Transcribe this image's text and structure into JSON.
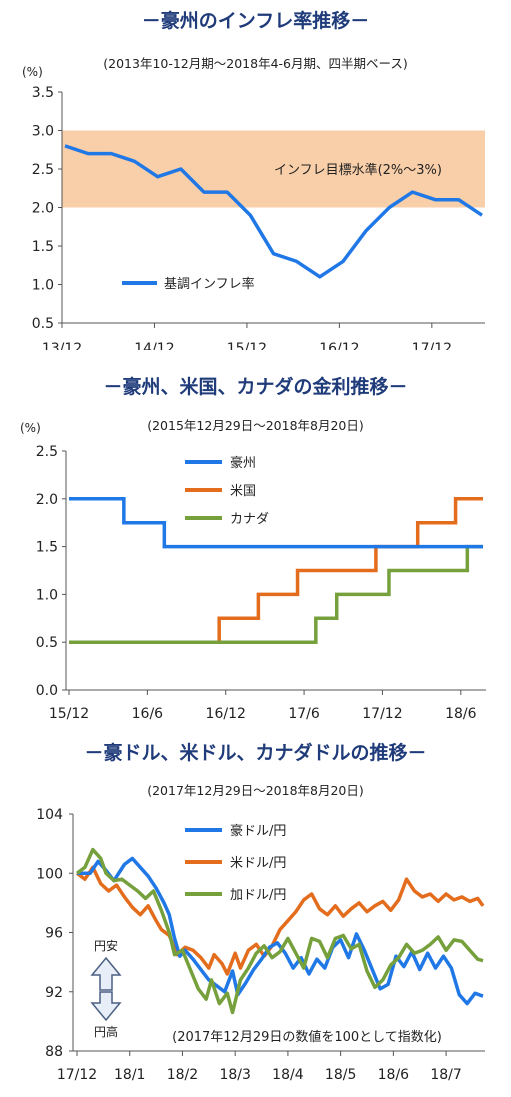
{
  "chart_data": [
    {
      "type": "line",
      "title": "－豪州のインフレ率推移－",
      "subtitle": "(2013年10-12月期～2018年4-6月期、四半期ベース)",
      "unit_label": "(%)",
      "ylim": [
        0.5,
        3.5
      ],
      "yticks": [
        "0.5",
        "1.0",
        "1.5",
        "2.0",
        "2.5",
        "3.0",
        "3.5"
      ],
      "xtick_labels": [
        "13/12",
        "14/12",
        "15/12",
        "16/12",
        "17/12"
      ],
      "band": {
        "label": "インフレ目標水準(2%～3%)",
        "from": 2.0,
        "to": 3.0,
        "color": "#f9cfa9"
      },
      "series": [
        {
          "name": "基調インフレ率",
          "color": "#1f78e6",
          "values": [
            2.8,
            2.7,
            2.7,
            2.6,
            2.4,
            2.5,
            2.2,
            2.2,
            1.9,
            1.4,
            1.3,
            1.1,
            1.3,
            1.7,
            2.0,
            2.2,
            2.1,
            2.1,
            1.9
          ]
        }
      ]
    },
    {
      "type": "line",
      "title": "－豪州、米国、カナダの金利推移－",
      "subtitle": "(2015年12月29日～2018年8月20日)",
      "unit_label": "(%)",
      "ylim": [
        0.0,
        2.5
      ],
      "yticks": [
        "0.0",
        "0.5",
        "1.0",
        "1.5",
        "2.0",
        "2.5"
      ],
      "xtick_labels": [
        "15/12",
        "16/6",
        "16/12",
        "17/6",
        "17/12",
        "18/6"
      ],
      "step": true,
      "series": [
        {
          "name": "豪州",
          "color": "#1f78e6",
          "points": [
            [
              0,
              2.0
            ],
            [
              4.2,
              2.0
            ],
            [
              4.2,
              1.75
            ],
            [
              7.3,
              1.75
            ],
            [
              7.3,
              1.5
            ],
            [
              31.7,
              1.5
            ]
          ]
        },
        {
          "name": "米国",
          "color": "#e36c1d",
          "points": [
            [
              0,
              0.5
            ],
            [
              11.5,
              0.5
            ],
            [
              11.5,
              0.75
            ],
            [
              14.5,
              0.75
            ],
            [
              14.5,
              1.0
            ],
            [
              17.5,
              1.0
            ],
            [
              17.5,
              1.25
            ],
            [
              23.5,
              1.25
            ],
            [
              23.5,
              1.5
            ],
            [
              26.7,
              1.5
            ],
            [
              26.7,
              1.75
            ],
            [
              29.6,
              1.75
            ],
            [
              29.6,
              2.0
            ],
            [
              31.7,
              2.0
            ]
          ]
        },
        {
          "name": "カナダ",
          "color": "#76a03c",
          "points": [
            [
              0,
              0.5
            ],
            [
              18.9,
              0.5
            ],
            [
              18.9,
              0.75
            ],
            [
              20.5,
              0.75
            ],
            [
              20.5,
              1.0
            ],
            [
              24.5,
              1.0
            ],
            [
              24.5,
              1.25
            ],
            [
              30.5,
              1.25
            ],
            [
              30.5,
              1.5
            ],
            [
              31.7,
              1.5
            ]
          ]
        }
      ]
    },
    {
      "type": "line",
      "title": "－豪ドル、米ドル、カナダドルの推移－",
      "subtitle": "(2017年12月29日～2018年8月20日)",
      "ylim": [
        88,
        104
      ],
      "yticks": [
        "88",
        "92",
        "96",
        "100",
        "104"
      ],
      "xtick_labels": [
        "17/12",
        "18/1",
        "18/2",
        "18/3",
        "18/4",
        "18/5",
        "18/6",
        "18/7"
      ],
      "annotation": "(2017年12月29日の数値を100として指数化)",
      "arrow_labels": {
        "up": "円安",
        "down": "円高"
      },
      "series": [
        {
          "name": "豪ドル/円",
          "color": "#1f78e6",
          "points": [
            [
              0,
              100
            ],
            [
              0.25,
              100
            ],
            [
              0.4,
              100.8
            ],
            [
              0.55,
              100.2
            ],
            [
              0.7,
              99.5
            ],
            [
              0.9,
              100.6
            ],
            [
              1.05,
              101
            ],
            [
              1.2,
              100.4
            ],
            [
              1.35,
              99.8
            ],
            [
              1.5,
              99
            ],
            [
              1.65,
              98
            ],
            [
              1.75,
              97.2
            ],
            [
              1.85,
              95.6
            ],
            [
              1.95,
              94.4
            ],
            [
              2.05,
              94.8
            ],
            [
              2.2,
              94.2
            ],
            [
              2.35,
              93.5
            ],
            [
              2.5,
              92.8
            ],
            [
              2.65,
              92.4
            ],
            [
              2.8,
              92
            ],
            [
              2.95,
              93.4
            ],
            [
              3.05,
              91.8
            ],
            [
              3.2,
              92.6
            ],
            [
              3.35,
              93.5
            ],
            [
              3.5,
              94.2
            ],
            [
              3.65,
              95
            ],
            [
              3.8,
              95.3
            ],
            [
              3.95,
              94.6
            ],
            [
              4.1,
              93.6
            ],
            [
              4.25,
              94.3
            ],
            [
              4.4,
              93.2
            ],
            [
              4.55,
              94.2
            ],
            [
              4.7,
              93.6
            ],
            [
              4.85,
              95
            ],
            [
              5.0,
              95.5
            ],
            [
              5.15,
              94.3
            ],
            [
              5.3,
              95.9
            ],
            [
              5.45,
              94.8
            ],
            [
              5.6,
              93.5
            ],
            [
              5.75,
              92.2
            ],
            [
              5.9,
              92.5
            ],
            [
              6.05,
              94.4
            ],
            [
              6.2,
              93.7
            ],
            [
              6.35,
              94.7
            ],
            [
              6.5,
              93.5
            ],
            [
              6.65,
              94.6
            ],
            [
              6.8,
              93.6
            ],
            [
              6.95,
              94.4
            ],
            [
              7.1,
              93.6
            ],
            [
              7.25,
              91.8
            ],
            [
              7.4,
              91.2
            ],
            [
              7.55,
              91.9
            ],
            [
              7.7,
              91.7
            ]
          ]
        },
        {
          "name": "米ドル/円",
          "color": "#e36c1d",
          "points": [
            [
              0,
              100
            ],
            [
              0.15,
              99.6
            ],
            [
              0.3,
              100.4
            ],
            [
              0.45,
              99.3
            ],
            [
              0.6,
              98.8
            ],
            [
              0.75,
              99.2
            ],
            [
              0.9,
              98.4
            ],
            [
              1.05,
              97.7
            ],
            [
              1.2,
              97.2
            ],
            [
              1.35,
              97.8
            ],
            [
              1.5,
              96.8
            ],
            [
              1.6,
              96.2
            ],
            [
              1.75,
              95.8
            ],
            [
              1.9,
              94.5
            ],
            [
              2.05,
              95
            ],
            [
              2.2,
              94.8
            ],
            [
              2.35,
              94.3
            ],
            [
              2.5,
              93.6
            ],
            [
              2.6,
              94.5
            ],
            [
              2.75,
              93.9
            ],
            [
              2.85,
              93.2
            ],
            [
              3.0,
              94.6
            ],
            [
              3.1,
              93.6
            ],
            [
              3.25,
              94.8
            ],
            [
              3.4,
              95.2
            ],
            [
              3.55,
              94.4
            ],
            [
              3.7,
              95.1
            ],
            [
              3.85,
              96.2
            ],
            [
              4.0,
              96.8
            ],
            [
              4.15,
              97.4
            ],
            [
              4.3,
              98.2
            ],
            [
              4.45,
              98.6
            ],
            [
              4.6,
              97.6
            ],
            [
              4.75,
              97.2
            ],
            [
              4.9,
              97.8
            ],
            [
              5.05,
              97.1
            ],
            [
              5.2,
              97.6
            ],
            [
              5.35,
              98
            ],
            [
              5.5,
              97.4
            ],
            [
              5.65,
              97.8
            ],
            [
              5.8,
              98.1
            ],
            [
              5.95,
              97.5
            ],
            [
              6.1,
              98.2
            ],
            [
              6.25,
              99.6
            ],
            [
              6.4,
              98.8
            ],
            [
              6.55,
              98.4
            ],
            [
              6.7,
              98.6
            ],
            [
              6.85,
              98.1
            ],
            [
              7.0,
              98.6
            ],
            [
              7.15,
              98.2
            ],
            [
              7.3,
              98.4
            ],
            [
              7.45,
              98.1
            ],
            [
              7.6,
              98.3
            ],
            [
              7.7,
              97.8
            ]
          ]
        },
        {
          "name": "加ドル/円",
          "color": "#76a03c",
          "points": [
            [
              0,
              100
            ],
            [
              0.15,
              100.4
            ],
            [
              0.3,
              101.6
            ],
            [
              0.45,
              101
            ],
            [
              0.55,
              100
            ],
            [
              0.7,
              99.5
            ],
            [
              0.85,
              99.6
            ],
            [
              1.0,
              99.2
            ],
            [
              1.15,
              98.8
            ],
            [
              1.3,
              98.3
            ],
            [
              1.45,
              98.8
            ],
            [
              1.6,
              97.5
            ],
            [
              1.75,
              96
            ],
            [
              1.85,
              94.5
            ],
            [
              2.0,
              94.8
            ],
            [
              2.15,
              93.5
            ],
            [
              2.3,
              92.2
            ],
            [
              2.45,
              91.5
            ],
            [
              2.55,
              92.8
            ],
            [
              2.7,
              91.2
            ],
            [
              2.85,
              91.9
            ],
            [
              2.95,
              90.6
            ],
            [
              3.1,
              92.8
            ],
            [
              3.25,
              93.6
            ],
            [
              3.4,
              94.6
            ],
            [
              3.55,
              95.1
            ],
            [
              3.7,
              94.3
            ],
            [
              3.85,
              94.7
            ],
            [
              4.0,
              95.6
            ],
            [
              4.15,
              94.6
            ],
            [
              4.3,
              93.6
            ],
            [
              4.45,
              95.6
            ],
            [
              4.6,
              95.4
            ],
            [
              4.75,
              94.3
            ],
            [
              4.9,
              95.6
            ],
            [
              5.05,
              95.8
            ],
            [
              5.2,
              94.9
            ],
            [
              5.35,
              95.2
            ],
            [
              5.5,
              93.4
            ],
            [
              5.65,
              92.3
            ],
            [
              5.8,
              92.8
            ],
            [
              5.95,
              93.8
            ],
            [
              6.1,
              94.3
            ],
            [
              6.25,
              95.2
            ],
            [
              6.4,
              94.6
            ],
            [
              6.55,
              94.8
            ],
            [
              6.7,
              95.2
            ],
            [
              6.85,
              95.7
            ],
            [
              7.0,
              94.8
            ],
            [
              7.15,
              95.5
            ],
            [
              7.3,
              95.4
            ],
            [
              7.45,
              94.8
            ],
            [
              7.6,
              94.2
            ],
            [
              7.7,
              94.1
            ]
          ]
        }
      ]
    }
  ]
}
